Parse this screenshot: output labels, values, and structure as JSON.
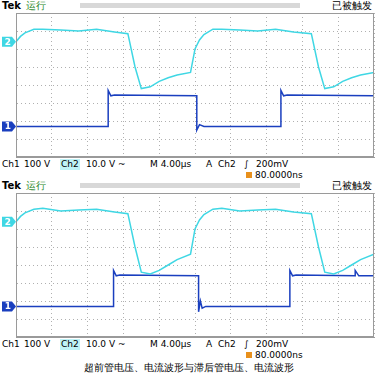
{
  "caption": "超前管电压、电流波形与滞后管电压、电流波形",
  "chart_data": [
    {
      "type": "line",
      "brand": "Tek",
      "run_state": "运行",
      "trigger_state": "已被触发",
      "footer": [
        "Ch1",
        "100 V",
        "Ch2",
        "10.0 V ~",
        "M 4.00μs",
        "A",
        "Ch2",
        "∫",
        "200mV"
      ],
      "trigger_offset": "80.0000ns",
      "xlim": [
        0,
        40
      ],
      "xticks": [
        0,
        4,
        8,
        12,
        16,
        20,
        24,
        28,
        32,
        36,
        40
      ],
      "ylim": [
        -4,
        4
      ],
      "yticks": [
        -4,
        -3,
        -2,
        -1,
        0,
        1,
        2,
        3,
        4
      ],
      "grid": true,
      "tick_labels": false,
      "series": [
        {
          "name": "2",
          "color": "#3fd7e4",
          "x": [
            0,
            0.5,
            1,
            2,
            3,
            5,
            7,
            9,
            11,
            12.5,
            13.3,
            14,
            15,
            16,
            17,
            18,
            19.5,
            20,
            20.5,
            21,
            22,
            23,
            25,
            27,
            29,
            31,
            33,
            33.8,
            34.5,
            35.5,
            36.5,
            37.5,
            38.5,
            40
          ],
          "values": [
            2.4,
            2.7,
            2.9,
            3.1,
            3.1,
            3.05,
            3.0,
            3.1,
            2.95,
            2.85,
            1.0,
            -0.2,
            -0.1,
            0.2,
            0.4,
            0.55,
            0.7,
            2.0,
            2.5,
            2.8,
            3.1,
            3.1,
            3.05,
            3.0,
            3.1,
            2.95,
            2.85,
            1.0,
            -0.2,
            -0.1,
            0.2,
            0.4,
            0.55,
            0.7
          ]
        },
        {
          "name": "1",
          "color": "#1a3fbf",
          "x": [
            0,
            10.3,
            10.3,
            10.6,
            11,
            20.2,
            20.2,
            20.5,
            21,
            29.6,
            29.6,
            29.9,
            30.3,
            40
          ],
          "values": [
            -2.3,
            -2.3,
            -0.3,
            -0.6,
            -0.55,
            -0.6,
            -2.5,
            -2.2,
            -2.3,
            -2.3,
            -0.3,
            -0.6,
            -0.55,
            -0.6
          ]
        }
      ]
    },
    {
      "type": "line",
      "brand": "Tek",
      "run_state": "运行",
      "trigger_state": "已被触发",
      "footer": [
        "Ch1",
        "100 V",
        "Ch2",
        "10.0 V ~",
        "M 4.00μs",
        "A",
        "Ch2",
        "∫",
        "200mV"
      ],
      "trigger_offset": "80.0000ns",
      "xlim": [
        0,
        40
      ],
      "xticks": [
        0,
        4,
        8,
        12,
        16,
        20,
        24,
        28,
        32,
        36,
        40
      ],
      "ylim": [
        -4,
        4
      ],
      "yticks": [
        -4,
        -3,
        -2,
        -1,
        0,
        1,
        2,
        3,
        4
      ],
      "grid": true,
      "tick_labels": false,
      "series": [
        {
          "name": "2",
          "color": "#3fd7e4",
          "x": [
            0,
            0.5,
            1,
            2,
            3,
            5,
            7,
            9,
            11,
            12.5,
            13.3,
            14,
            15,
            16,
            17,
            18,
            19.5,
            20,
            20.5,
            21,
            22,
            23,
            25,
            27,
            29,
            31,
            33,
            33.8,
            34.5,
            35.5,
            36.5,
            37.5,
            38.5,
            40
          ],
          "values": [
            2.4,
            2.7,
            2.9,
            3.1,
            3.15,
            3.0,
            3.05,
            3.1,
            2.95,
            2.85,
            1.0,
            -0.4,
            -0.5,
            -0.3,
            0.0,
            0.3,
            0.6,
            2.0,
            2.5,
            2.8,
            3.1,
            3.15,
            3.0,
            3.05,
            3.1,
            2.95,
            2.85,
            1.0,
            -0.4,
            -0.5,
            -0.3,
            0.0,
            0.3,
            0.6
          ]
        },
        {
          "name": "1",
          "color": "#1a3fbf",
          "x": [
            0,
            10.9,
            10.9,
            11.2,
            11.6,
            20.4,
            20.4,
            20.6,
            20.8,
            21.2,
            30.6,
            30.6,
            30.9,
            31.3,
            37.9,
            37.9,
            38.3,
            40
          ],
          "values": [
            -2.3,
            -2.3,
            -0.3,
            -0.6,
            -0.55,
            -0.6,
            -2.6,
            -2.0,
            -2.4,
            -2.3,
            -2.3,
            -0.3,
            -0.6,
            -0.55,
            -0.6,
            -0.3,
            -0.6,
            -0.6
          ]
        }
      ]
    }
  ]
}
